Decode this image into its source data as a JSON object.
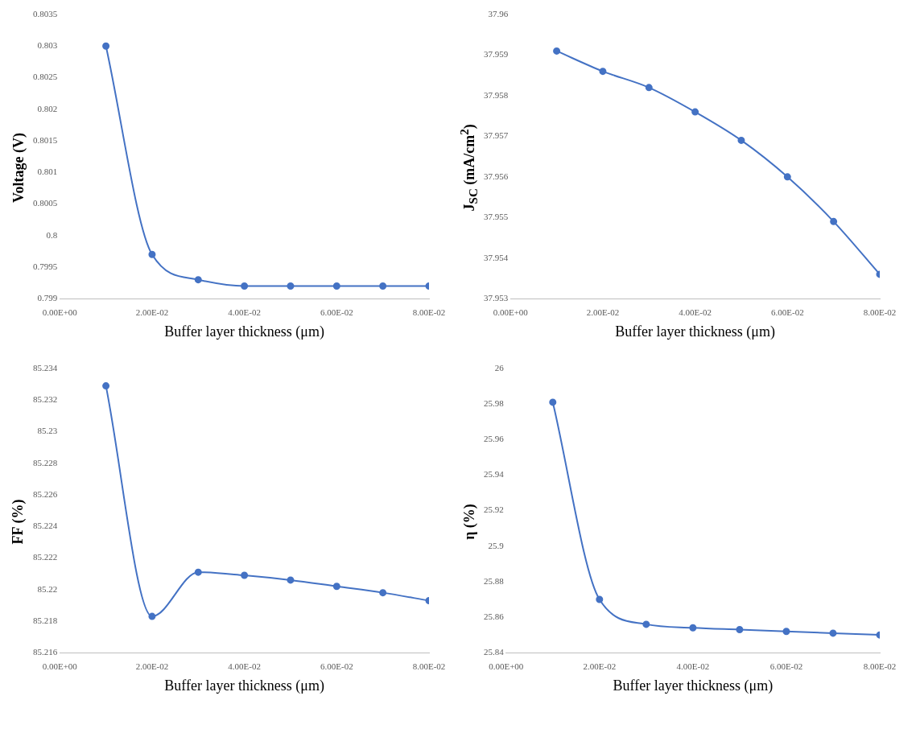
{
  "chart_data": [
    {
      "type": "line",
      "xlabel": "Buffer layer thickness (μm)",
      "ylabel": "Voltage (V)",
      "x": [
        0.01,
        0.02,
        0.03,
        0.04,
        0.05,
        0.06,
        0.07,
        0.08
      ],
      "series": [
        {
          "color": "#4472c4",
          "values": [
            0.803,
            0.7997,
            0.7993,
            0.7992,
            0.7992,
            0.7992,
            0.7992,
            0.7992
          ]
        }
      ],
      "xlim": [
        0,
        0.08
      ],
      "xticks": [
        {
          "value": 0,
          "label": "0.00E+00"
        },
        {
          "value": 0.02,
          "label": "2.00E-02"
        },
        {
          "value": 0.04,
          "label": "4.00E-02"
        },
        {
          "value": 0.06,
          "label": "6.00E-02"
        },
        {
          "value": 0.08,
          "label": "8.00E-02"
        }
      ],
      "ylim": [
        0.799,
        0.8035
      ],
      "yticks": [
        0.799,
        0.7995,
        0.8,
        0.8005,
        0.801,
        0.8015,
        0.802,
        0.8025,
        0.803,
        0.8035
      ],
      "grid": false,
      "legend": false,
      "marker": "circle",
      "line_style": "solid"
    },
    {
      "type": "line",
      "xlabel": "Buffer layer thickness (μm)",
      "ylabel": "J$_{SC}$ (mA/cm$^{2}$)",
      "x": [
        0.01,
        0.02,
        0.03,
        0.04,
        0.05,
        0.06,
        0.07,
        0.08
      ],
      "series": [
        {
          "color": "#4472c4",
          "values": [
            37.9591,
            37.9586,
            37.9582,
            37.9576,
            37.9569,
            37.956,
            37.9549,
            37.9536
          ]
        }
      ],
      "xlim": [
        0,
        0.08
      ],
      "xticks": [
        {
          "value": 0,
          "label": "0.00E+00"
        },
        {
          "value": 0.02,
          "label": "2.00E-02"
        },
        {
          "value": 0.04,
          "label": "4.00E-02"
        },
        {
          "value": 0.06,
          "label": "6.00E-02"
        },
        {
          "value": 0.08,
          "label": "8.00E-02"
        }
      ],
      "ylim": [
        37.953,
        37.96
      ],
      "yticks": [
        37.953,
        37.954,
        37.955,
        37.956,
        37.957,
        37.958,
        37.959,
        37.96
      ],
      "grid": false,
      "legend": false,
      "marker": "circle",
      "line_style": "solid"
    },
    {
      "type": "line",
      "xlabel": "Buffer layer thickness (μm)",
      "ylabel": "FF (%)",
      "x": [
        0.01,
        0.02,
        0.03,
        0.04,
        0.05,
        0.06,
        0.07,
        0.08
      ],
      "series": [
        {
          "color": "#4472c4",
          "values": [
            85.2329,
            85.2183,
            85.2211,
            85.2209,
            85.2206,
            85.2202,
            85.2198,
            85.2193
          ]
        }
      ],
      "xlim": [
        0,
        0.08
      ],
      "xticks": [
        {
          "value": 0,
          "label": "0.00E+00"
        },
        {
          "value": 0.02,
          "label": "2.00E-02"
        },
        {
          "value": 0.04,
          "label": "4.00E-02"
        },
        {
          "value": 0.06,
          "label": "6.00E-02"
        },
        {
          "value": 0.08,
          "label": "8.00E-02"
        }
      ],
      "ylim": [
        85.216,
        85.234
      ],
      "yticks": [
        85.216,
        85.218,
        85.22,
        85.222,
        85.224,
        85.226,
        85.228,
        85.23,
        85.232,
        85.234
      ],
      "grid": false,
      "legend": false,
      "marker": "circle",
      "line_style": "solid"
    },
    {
      "type": "line",
      "xlabel": "Buffer layer thickness (μm)",
      "ylabel": "η (%)",
      "x": [
        0.01,
        0.02,
        0.03,
        0.04,
        0.05,
        0.06,
        0.07,
        0.08
      ],
      "series": [
        {
          "color": "#4472c4",
          "values": [
            25.981,
            25.87,
            25.856,
            25.854,
            25.853,
            25.852,
            25.851,
            25.85
          ]
        }
      ],
      "xlim": [
        0,
        0.08
      ],
      "xticks": [
        {
          "value": 0,
          "label": "0.00E+00"
        },
        {
          "value": 0.02,
          "label": "2.00E-02"
        },
        {
          "value": 0.04,
          "label": "4.00E-02"
        },
        {
          "value": 0.06,
          "label": "6.00E-02"
        },
        {
          "value": 0.08,
          "label": "8.00E-02"
        }
      ],
      "ylim": [
        25.84,
        26
      ],
      "yticks": [
        25.84,
        25.86,
        25.88,
        25.9,
        25.92,
        25.94,
        25.96,
        25.98,
        26
      ],
      "grid": false,
      "legend": false,
      "marker": "circle",
      "line_style": "solid"
    }
  ]
}
